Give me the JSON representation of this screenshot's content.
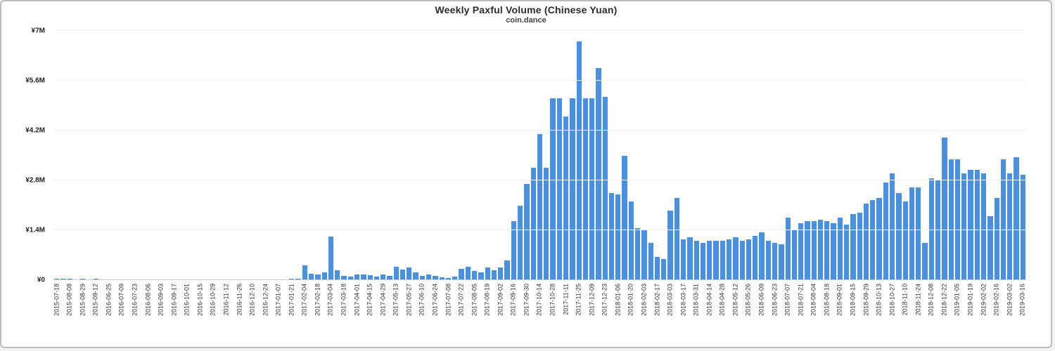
{
  "frame": {
    "background": "#ffffff",
    "border_color": "#bdbdbd"
  },
  "chart_data": {
    "type": "bar",
    "title": "Weekly Paxful Volume (Chinese Yuan)",
    "subtitle": "coin.dance",
    "unit": "millions CNY",
    "currency_prefix": "¥",
    "bar_color": "#4a90e2",
    "grid": true,
    "legend_position": "none",
    "xlabel": "",
    "ylabel": "",
    "ylim": [
      0,
      7
    ],
    "yticks": [
      {
        "value": 0,
        "label": "¥0"
      },
      {
        "value": 1.4,
        "label": "¥1.4M"
      },
      {
        "value": 2.8,
        "label": "¥2.8M"
      },
      {
        "value": 4.2,
        "label": "¥4.2M"
      },
      {
        "value": 5.6,
        "label": "¥5.6M"
      },
      {
        "value": 7,
        "label": "¥7M"
      }
    ],
    "dates": [
      "2015-07-18",
      "",
      "2015-08-08",
      "",
      "2015-08-29",
      "",
      "2015-09-12",
      "",
      "2016-06-25",
      "",
      "2016-07-09",
      "",
      "2016-07-23",
      "",
      "2016-08-06",
      "",
      "2016-09-03",
      "",
      "2016-09-17",
      "",
      "2016-10-01",
      "",
      "2016-10-15",
      "",
      "2016-10-29",
      "",
      "2016-11-12",
      "",
      "2016-11-26",
      "",
      "2016-12-10",
      "",
      "2016-12-24",
      "",
      "2017-01-07",
      "",
      "2017-01-21",
      "",
      "2017-02-04",
      "",
      "2017-02-18",
      "",
      "2017-03-04",
      "",
      "2017-03-18",
      "",
      "2017-04-01",
      "",
      "2017-04-15",
      "",
      "2017-04-29",
      "",
      "2017-05-13",
      "",
      "2017-05-27",
      "",
      "2017-06-10",
      "",
      "2017-06-24",
      "",
      "2017-07-08",
      "",
      "2017-07-22",
      "",
      "2017-08-05",
      "",
      "2017-08-19",
      "",
      "2017-09-02",
      "",
      "2017-09-16",
      "",
      "2017-09-30",
      "",
      "2017-10-14",
      "",
      "2017-10-28",
      "",
      "2017-11-11",
      "",
      "2017-11-25",
      "",
      "2017-12-09",
      "",
      "2017-12-23",
      "",
      "2018-01-06",
      "",
      "2018-01-20",
      "",
      "2018-02-03",
      "",
      "2018-02-17",
      "",
      "2018-03-03",
      "",
      "2018-03-17",
      "",
      "2018-03-31",
      "",
      "2018-04-14",
      "",
      "2018-04-28",
      "",
      "2018-05-12",
      "",
      "2018-05-26",
      "",
      "2018-06-09",
      "",
      "2018-06-23",
      "",
      "2018-07-07",
      "",
      "2018-07-21",
      "",
      "2018-08-04",
      "",
      "2018-08-18",
      "",
      "2018-09-01",
      "",
      "2018-09-15",
      "",
      "2018-09-29",
      "",
      "2018-10-13",
      "",
      "2018-10-27",
      "",
      "2018-11-10",
      "",
      "2018-11-24",
      "",
      "2018-12-08",
      "",
      "2018-12-22",
      "",
      "2019-01-05",
      "",
      "2019-01-19",
      "",
      "2019-02-02",
      "",
      "2019-02-16",
      "",
      "2019-03-02",
      "",
      "2019-03-16"
    ],
    "values": [
      0.03,
      0.04,
      0.04,
      0,
      0.03,
      0,
      0.03,
      0.02,
      0.02,
      0,
      0.02,
      0,
      0.02,
      0.02,
      0,
      0.02,
      0.02,
      0,
      0.02,
      0,
      0.02,
      0,
      0,
      0.02,
      0,
      0.02,
      0.02,
      0,
      0.02,
      0.02,
      0.02,
      0,
      0.02,
      0.02,
      0.02,
      0,
      0.03,
      0.03,
      0.42,
      0.18,
      0.15,
      0.22,
      1.22,
      0.28,
      0.12,
      0.1,
      0.15,
      0.16,
      0.13,
      0.1,
      0.15,
      0.12,
      0.38,
      0.3,
      0.35,
      0.22,
      0.12,
      0.15,
      0.12,
      0.08,
      0.06,
      0.1,
      0.32,
      0.38,
      0.25,
      0.22,
      0.35,
      0.28,
      0.35,
      0.55,
      1.65,
      2.1,
      2.7,
      3.15,
      4.1,
      3.15,
      5.1,
      5.1,
      4.6,
      5.1,
      6.7,
      5.1,
      5.1,
      5.95,
      5.15,
      2.45,
      2.4,
      3.5,
      2.2,
      1.45,
      1.4,
      1.05,
      0.65,
      0.6,
      1.95,
      2.3,
      1.15,
      1.2,
      1.1,
      1.05,
      1.1,
      1.1,
      1.1,
      1.15,
      1.2,
      1.1,
      1.15,
      1.25,
      1.35,
      1.1,
      1.05,
      1.0,
      1.75,
      1.4,
      1.6,
      1.65,
      1.65,
      1.7,
      1.65,
      1.6,
      1.75,
      1.55,
      1.85,
      1.9,
      2.15,
      2.25,
      2.3,
      2.75,
      3.0,
      2.45,
      2.2,
      2.6,
      2.6,
      1.05,
      2.85,
      2.8,
      4.0,
      3.4,
      3.4,
      3.0,
      3.1,
      3.1,
      3.0,
      1.8,
      2.3,
      3.4,
      3.0,
      3.45,
      2.95
    ]
  }
}
